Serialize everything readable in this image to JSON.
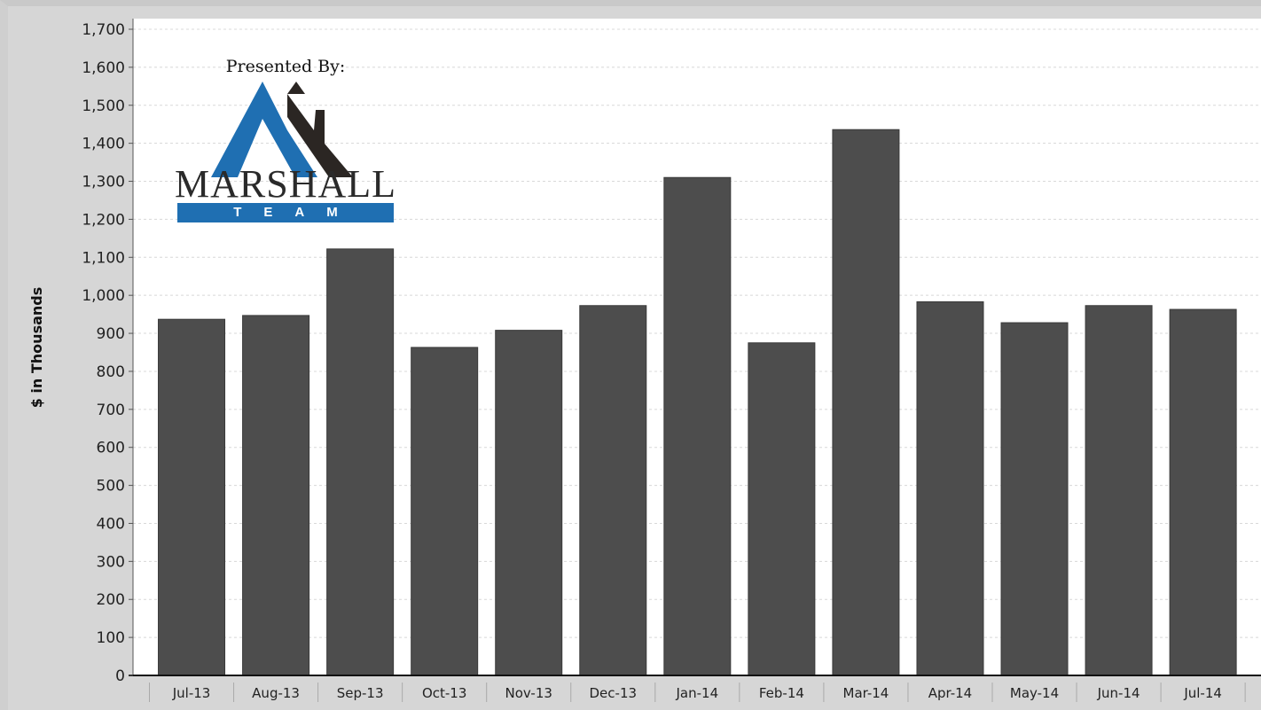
{
  "chart_data": {
    "type": "bar",
    "title": "",
    "xlabel": "",
    "ylabel": "$ in Thousands",
    "ylim": [
      0,
      1700
    ],
    "yticks": [
      0,
      100,
      200,
      300,
      400,
      500,
      600,
      700,
      800,
      900,
      1000,
      1100,
      1200,
      1300,
      1400,
      1500,
      1600,
      1700
    ],
    "ytick_labels": [
      "0",
      "100",
      "200",
      "300",
      "400",
      "500",
      "600",
      "700",
      "800",
      "900",
      "1,000",
      "1,100",
      "1,200",
      "1,300",
      "1,400",
      "1,500",
      "1,600",
      "1,700"
    ],
    "categories": [
      "Jul-13",
      "Aug-13",
      "Sep-13",
      "Oct-13",
      "Nov-13",
      "Dec-13",
      "Jan-14",
      "Feb-14",
      "Mar-14",
      "Apr-14",
      "May-14",
      "Jun-14",
      "Jul-14"
    ],
    "values": [
      937,
      947,
      1122,
      863,
      908,
      973,
      1310,
      875,
      1436,
      983,
      928,
      973,
      963
    ],
    "grid": true,
    "bar_color": "#4d4d4d"
  },
  "logo": {
    "presented_by": "Presented By:",
    "name": "MARSHALL",
    "tagline": "TEAM",
    "primary_color": "#1f6fb2",
    "secondary_color": "#2b2623"
  }
}
